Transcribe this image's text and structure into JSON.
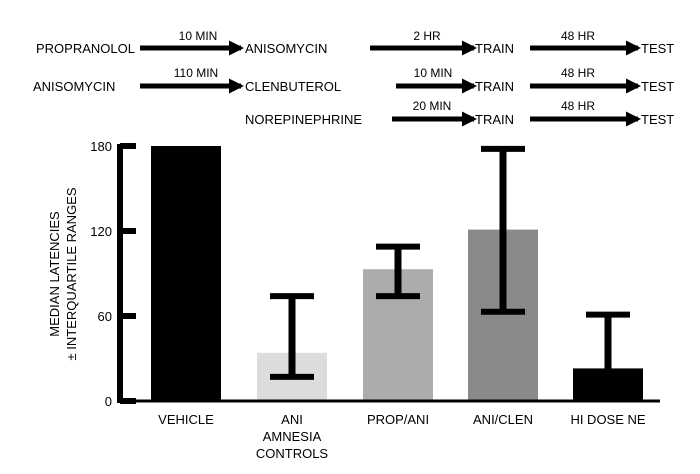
{
  "protocol": {
    "rows": [
      {
        "name": "row-propranolol",
        "items": [
          {
            "label": "PROPRANOLOL"
          },
          {
            "arrow": "10 MIN"
          },
          {
            "label": "ANISOMYCIN"
          },
          {
            "arrow": "2 HR"
          },
          {
            "label": "TRAIN"
          },
          {
            "arrow": "48 HR"
          },
          {
            "label": "TEST"
          }
        ]
      },
      {
        "name": "row-anisomycin",
        "items": [
          {
            "label": "ANISOMYCIN"
          },
          {
            "arrow": "110 MIN"
          },
          {
            "label": "CLENBUTEROL"
          },
          {
            "arrow": "10 MIN"
          },
          {
            "label": "TRAIN"
          },
          {
            "arrow": "48 HR"
          },
          {
            "label": "TEST"
          }
        ]
      },
      {
        "name": "row-norepinephrine",
        "items": [
          {
            "label": "NOREPINEPHRINE"
          },
          {
            "arrow": "20 MIN"
          },
          {
            "label": "TRAIN"
          },
          {
            "arrow": "48 HR"
          },
          {
            "label": "TEST"
          }
        ]
      }
    ]
  },
  "chart_data": {
    "type": "bar",
    "ylabel_line1": "MEDIAN LATENCIES",
    "ylabel_line2": "± INTERQUARTILE RANGES",
    "ylim": [
      0,
      180
    ],
    "yticks": [
      0,
      60,
      120,
      180
    ],
    "categories": [
      {
        "name": "vehicle",
        "lines": [
          "VEHICLE"
        ],
        "value": 180,
        "err_low": null,
        "err_high": null,
        "color": "#000000"
      },
      {
        "name": "ani-amnesia-controls",
        "lines": [
          "ANI",
          "AMNESIA",
          "CONTROLS"
        ],
        "value": 34,
        "err_low": 17,
        "err_high": 74,
        "color": "#dcdcdc"
      },
      {
        "name": "prop-ani",
        "lines": [
          "PROP/ANI"
        ],
        "value": 93,
        "err_low": 74,
        "err_high": 109,
        "color": "#acacac"
      },
      {
        "name": "ani-clen",
        "lines": [
          "ANI/CLEN"
        ],
        "value": 121,
        "err_low": 63,
        "err_high": 178,
        "color": "#8a8a8a"
      },
      {
        "name": "hi-dose-ne",
        "lines": [
          "HI DOSE NE"
        ],
        "value": 23,
        "err_low": 0,
        "err_high": 61,
        "color": "#000000"
      }
    ]
  }
}
